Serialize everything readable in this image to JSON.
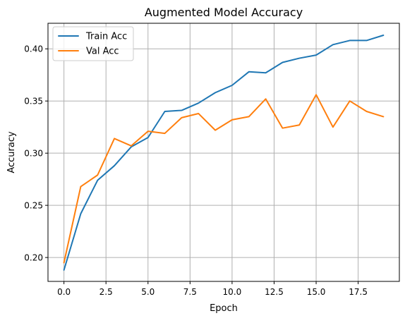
{
  "chart_data": {
    "type": "line",
    "title": "Augmented Model Accuracy",
    "xlabel": "Epoch",
    "ylabel": "Accuracy",
    "x": [
      0,
      1,
      2,
      3,
      4,
      5,
      6,
      7,
      8,
      9,
      10,
      11,
      12,
      13,
      14,
      15,
      16,
      17,
      18,
      19
    ],
    "series": [
      {
        "name": "Train Acc",
        "color": "#1f77b4",
        "values": [
          0.188,
          0.242,
          0.274,
          0.288,
          0.306,
          0.315,
          0.34,
          0.341,
          0.348,
          0.358,
          0.365,
          0.378,
          0.377,
          0.387,
          0.391,
          0.394,
          0.404,
          0.408,
          0.408,
          0.413
        ]
      },
      {
        "name": "Val Acc",
        "color": "#ff7f0e",
        "values": [
          0.195,
          0.268,
          0.279,
          0.314,
          0.307,
          0.321,
          0.319,
          0.334,
          0.338,
          0.322,
          0.332,
          0.335,
          0.352,
          0.324,
          0.327,
          0.356,
          0.325,
          0.35,
          0.34,
          0.335
        ]
      }
    ],
    "xlim": [
      -0.95,
      19.95
    ],
    "ylim": [
      0.1771,
      0.4245
    ],
    "xticks": [
      0.0,
      2.5,
      5.0,
      7.5,
      10.0,
      12.5,
      15.0,
      17.5
    ],
    "xtick_labels": [
      "0.0",
      "2.5",
      "5.0",
      "7.5",
      "10.0",
      "12.5",
      "15.0",
      "17.5"
    ],
    "yticks": [
      0.2,
      0.25,
      0.3,
      0.35,
      0.4
    ],
    "ytick_labels": [
      "0.20",
      "0.25",
      "0.30",
      "0.35",
      "0.40"
    ],
    "grid": true,
    "legend_position": "top-left"
  }
}
